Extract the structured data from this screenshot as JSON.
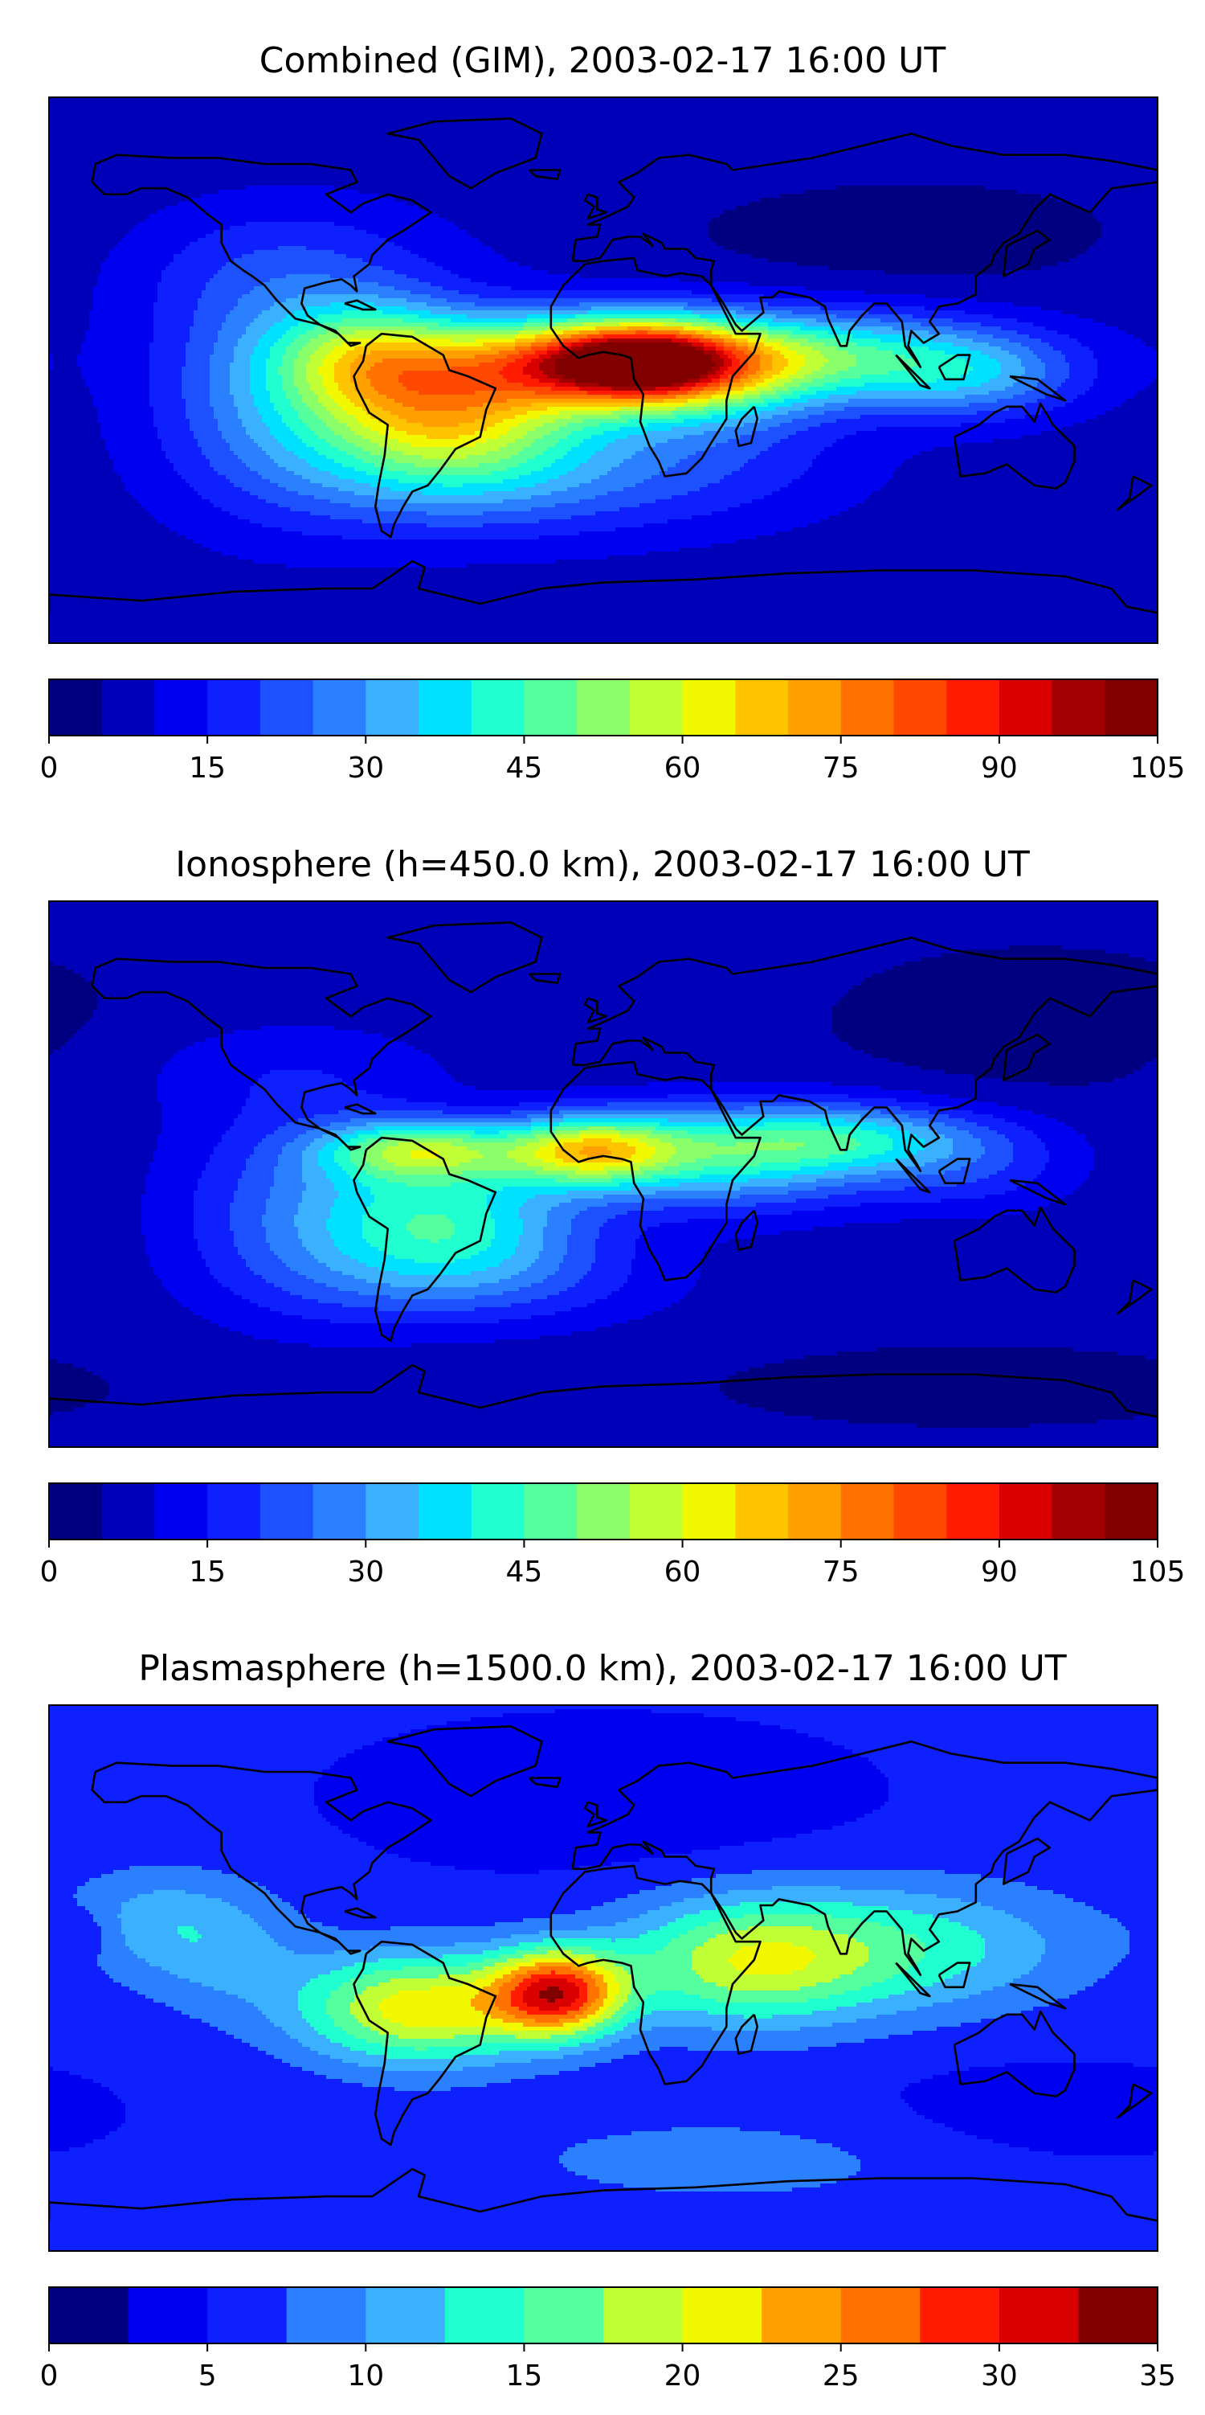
{
  "panels": [
    {
      "id": "combined",
      "title": "Combined (GIM), 2003-02-17 16:00 UT",
      "colorbar": {
        "min": 0,
        "max": 105,
        "step": 5,
        "tick_labels": [
          "0",
          "15",
          "30",
          "45",
          "60",
          "75",
          "90",
          "105"
        ]
      },
      "field": {
        "scale_max": 105,
        "background": 7,
        "blobs": [
          {
            "lon": -5,
            "lat": 3,
            "rx": 28,
            "ry": 10,
            "amp": 55
          },
          {
            "lon": 15,
            "lat": 3,
            "rx": 18,
            "ry": 8,
            "amp": 30
          },
          {
            "lon": -50,
            "lat": -12,
            "rx": 30,
            "ry": 17,
            "amp": 50
          },
          {
            "lon": -75,
            "lat": 5,
            "rx": 22,
            "ry": 12,
            "amp": 28
          },
          {
            "lon": 30,
            "lat": 0,
            "rx": 30,
            "ry": 12,
            "amp": 40
          },
          {
            "lon": 75,
            "lat": 5,
            "rx": 42,
            "ry": 10,
            "amp": 30
          },
          {
            "lon": 120,
            "lat": -3,
            "rx": 25,
            "ry": 10,
            "amp": 18
          },
          {
            "lon": -105,
            "lat": -5,
            "rx": 30,
            "ry": 28,
            "amp": 20
          },
          {
            "lon": -40,
            "lat": -35,
            "rx": 45,
            "ry": 15,
            "amp": 15
          },
          {
            "lon": -100,
            "lat": 35,
            "rx": 40,
            "ry": 15,
            "amp": 8
          },
          {
            "lon": 100,
            "lat": 45,
            "rx": 50,
            "ry": 12,
            "amp": -5
          },
          {
            "lon": 30,
            "lat": -30,
            "rx": 40,
            "ry": 15,
            "amp": 10
          }
        ]
      }
    },
    {
      "id": "ionosphere",
      "title": "Ionosphere  (h=450.0 km), 2003-02-17 16:00 UT",
      "colorbar": {
        "min": 0,
        "max": 105,
        "step": 5,
        "tick_labels": [
          "0",
          "15",
          "30",
          "45",
          "60",
          "75",
          "90",
          "105"
        ]
      },
      "field": {
        "scale_max": 105,
        "background": 6,
        "blobs": [
          {
            "lon": -5,
            "lat": 8,
            "rx": 20,
            "ry": 8,
            "amp": 46
          },
          {
            "lon": -60,
            "lat": 8,
            "rx": 22,
            "ry": 7,
            "amp": 38
          },
          {
            "lon": -50,
            "lat": -15,
            "rx": 30,
            "ry": 15,
            "amp": 32
          },
          {
            "lon": 40,
            "lat": 5,
            "rx": 35,
            "ry": 12,
            "amp": 30
          },
          {
            "lon": 80,
            "lat": 12,
            "rx": 35,
            "ry": 8,
            "amp": 25
          },
          {
            "lon": -100,
            "lat": -10,
            "rx": 30,
            "ry": 25,
            "amp": 15
          },
          {
            "lon": -40,
            "lat": -35,
            "rx": 45,
            "ry": 12,
            "amp": 12
          },
          {
            "lon": 120,
            "lat": 0,
            "rx": 25,
            "ry": 10,
            "amp": 10
          },
          {
            "lon": -100,
            "lat": 35,
            "rx": 40,
            "ry": 12,
            "amp": 6
          },
          {
            "lon": 140,
            "lat": 50,
            "rx": 40,
            "ry": 15,
            "amp": -4
          },
          {
            "lon": 120,
            "lat": -70,
            "rx": 50,
            "ry": 8,
            "amp": -4
          }
        ]
      }
    },
    {
      "id": "plasmasphere",
      "title": "Plasmasphere (h=1500.0 km), 2003-02-17 16:00 UT",
      "colorbar": {
        "min": 0,
        "max": 35,
        "step": 2.5,
        "tick_labels": [
          "0",
          "5",
          "10",
          "15",
          "20",
          "25",
          "30",
          "35"
        ]
      },
      "field": {
        "scale_max": 35,
        "background": 5.5,
        "blobs": [
          {
            "lon": -15,
            "lat": -5,
            "rx": 15,
            "ry": 10,
            "amp": 22
          },
          {
            "lon": -60,
            "lat": -10,
            "rx": 28,
            "ry": 13,
            "amp": 16
          },
          {
            "lon": 45,
            "lat": 5,
            "rx": 30,
            "ry": 15,
            "amp": 12
          },
          {
            "lon": 100,
            "lat": 10,
            "rx": 40,
            "ry": 15,
            "amp": 8
          },
          {
            "lon": -125,
            "lat": 10,
            "rx": 20,
            "ry": 15,
            "amp": 5
          },
          {
            "lon": -150,
            "lat": 20,
            "rx": 20,
            "ry": 12,
            "amp": 4
          },
          {
            "lon": 0,
            "lat": 60,
            "rx": 50,
            "ry": 15,
            "amp": -3
          },
          {
            "lon": -170,
            "lat": 15,
            "rx": 8,
            "ry": 6,
            "amp": -3
          },
          {
            "lon": 40,
            "lat": -60,
            "rx": 60,
            "ry": 12,
            "amp": 3
          },
          {
            "lon": 140,
            "lat": -45,
            "rx": 40,
            "ry": 12,
            "amp": -2
          }
        ]
      }
    }
  ],
  "jet_colors": [
    "#000080",
    "#0000b8",
    "#0000f0",
    "#0f20ff",
    "#1d50ff",
    "#2b80ff",
    "#3ab0ff",
    "#00e0ff",
    "#20ffd0",
    "#55ff9e",
    "#8bff6a",
    "#c0ff36",
    "#f2f800",
    "#ffc400",
    "#ffa000",
    "#ff7200",
    "#ff4800",
    "#ff1c00",
    "#d80000",
    "#a00000",
    "#800000"
  ]
}
